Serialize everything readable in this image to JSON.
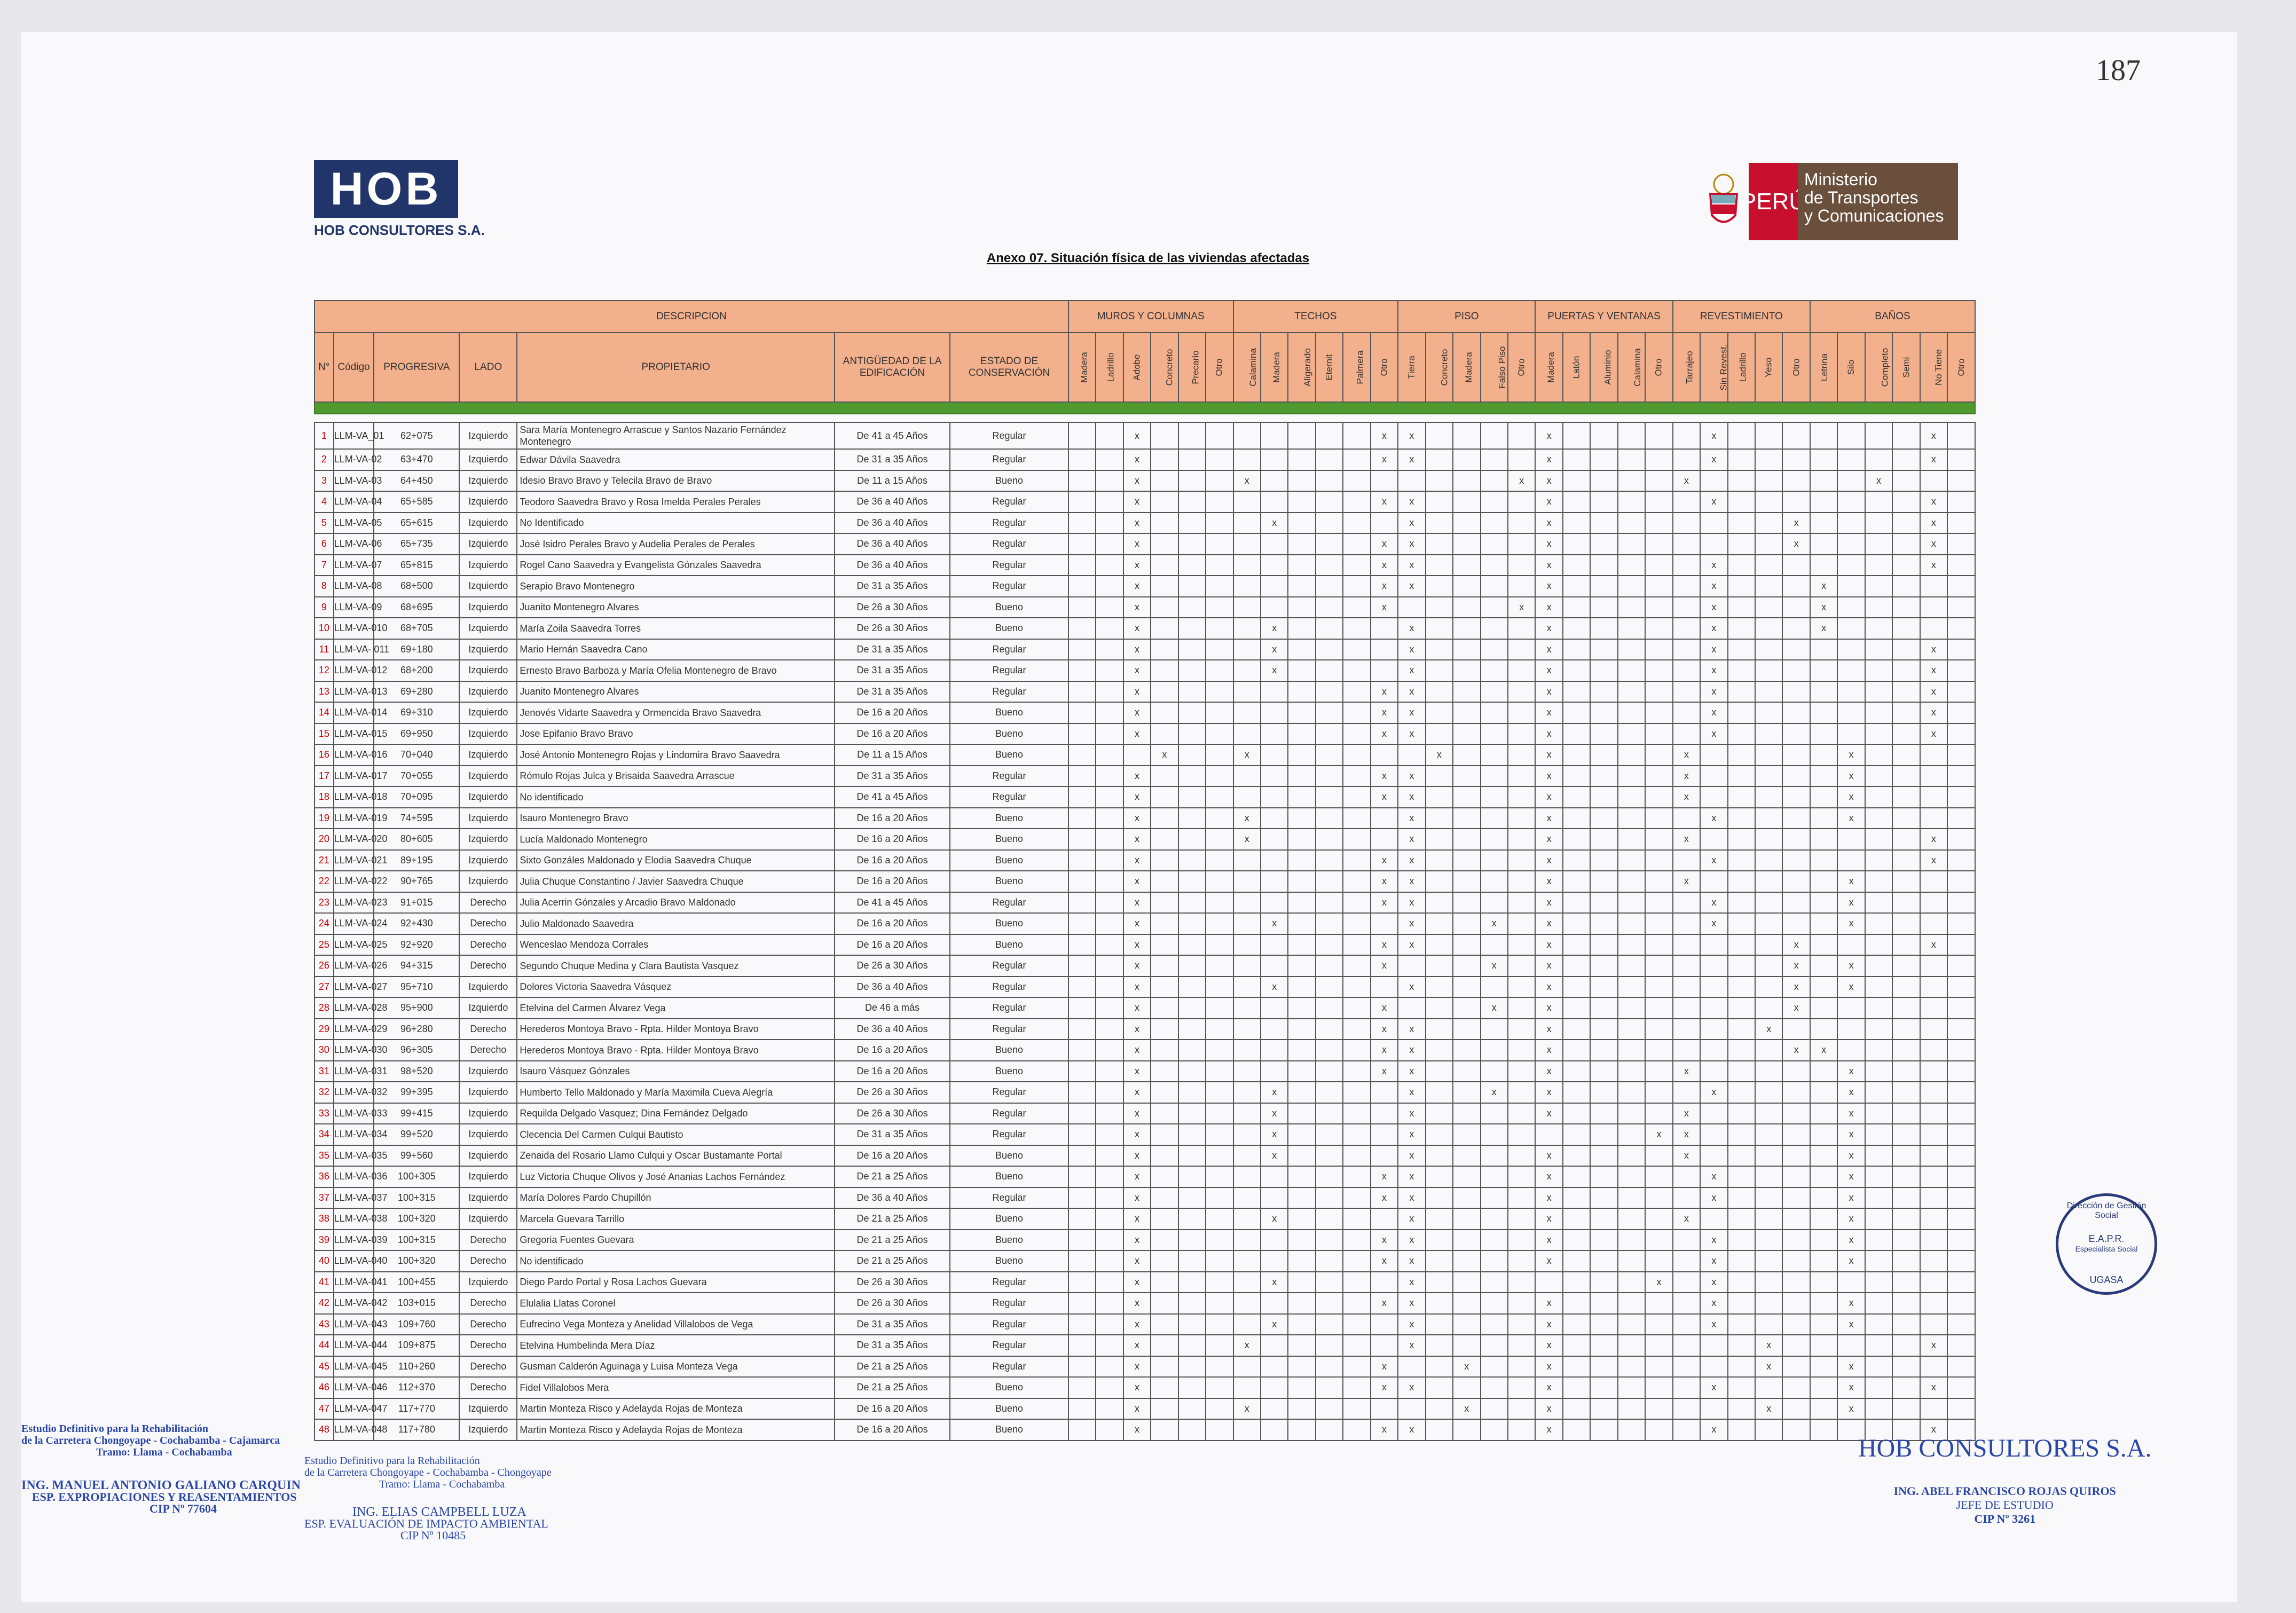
{
  "page_number": "187",
  "company": {
    "logo_text": "HOB",
    "name": "HOB CONSULTORES S.A."
  },
  "ministry": {
    "peru": "PERÚ",
    "line1": "Ministerio",
    "line2": "de Transportes",
    "line3": "y Comunicaciones"
  },
  "title": "Anexo 07. Situación física de las viviendas afectadas",
  "groups": {
    "descripcion": "DESCRIPCION",
    "muros": "MUROS Y COLUMNAS",
    "techos": "TECHOS",
    "piso": "PISO",
    "puertas": "PUERTAS Y VENTANAS",
    "revestimiento": "REVESTIMIENTO",
    "banos": "BAÑOS"
  },
  "headers": {
    "n": "N°",
    "codigo": "Código",
    "progresiva": "PROGRESIVA",
    "lado": "LADO",
    "propietario": "PROPIETARIO",
    "antiguedad": "ANTIGÜEDAD DE LA EDIFICACIÓN",
    "estado": "ESTADO DE CONSERVACIÓN"
  },
  "subheaders": [
    "Madera",
    "Ladrillo",
    "Adobe",
    "Concreto",
    "Precario",
    "Otro",
    "Calamina",
    "Madera",
    "Aligerado",
    "Eternit",
    "Palmera",
    "Otro",
    "Tierra",
    "Concreto",
    "Madera",
    "Falso Piso",
    "Otro",
    "Madera",
    "Latón",
    "Aluminio",
    "Calamina",
    "Otro",
    "Tarrajeo",
    "Sin Revest.",
    "Ladrillo",
    "Yeso",
    "Otro",
    "Letrina",
    "Silo",
    "Completo",
    "Semi",
    "No Tiene",
    "Otro"
  ],
  "rows": [
    {
      "n": "1",
      "codigo": "LLM-VA_01",
      "progresiva": "62+075",
      "lado": "Izquierdo",
      "propietario": "Sara María Montenegro Arrascue y Santos Nazario Fernández Montenegro",
      "antiguedad": "De 41 a 45 Años",
      "estado": "Regular",
      "x": [
        2,
        11,
        12,
        17,
        23,
        31
      ]
    },
    {
      "n": "2",
      "codigo": "LLM-VA-02",
      "progresiva": "63+470",
      "lado": "Izquierdo",
      "propietario": "Edwar Dávila Saavedra",
      "antiguedad": "De 31 a 35 Años",
      "estado": "Regular",
      "x": [
        2,
        11,
        12,
        17,
        23,
        31
      ]
    },
    {
      "n": "3",
      "codigo": "LLM-VA-03",
      "progresiva": "64+450",
      "lado": "Izquierdo",
      "propietario": "Idesio Bravo Bravo y Telecila Bravo de Bravo",
      "antiguedad": "De 11 a 15 Años",
      "estado": "Bueno",
      "x": [
        2,
        6,
        16,
        17,
        22,
        29
      ]
    },
    {
      "n": "4",
      "codigo": "LLM-VA-04",
      "progresiva": "65+585",
      "lado": "Izquierdo",
      "propietario": "Teodoro Saavedra Bravo y Rosa Imelda Perales Perales",
      "antiguedad": "De 36 a 40 Años",
      "estado": "Regular",
      "x": [
        2,
        11,
        12,
        17,
        23,
        31
      ]
    },
    {
      "n": "5",
      "codigo": "LLM-VA-05",
      "progresiva": "65+615",
      "lado": "Izquierdo",
      "propietario": "No Identificado",
      "antiguedad": "De 36 a 40 Años",
      "estado": "Regular",
      "x": [
        2,
        7,
        12,
        17,
        26,
        31
      ]
    },
    {
      "n": "6",
      "codigo": "LLM-VA-06",
      "progresiva": "65+735",
      "lado": "Izquierdo",
      "propietario": "José Isidro  Perales Bravo y Audelia Perales de Perales",
      "antiguedad": "De 36 a 40 Años",
      "estado": "Regular",
      "x": [
        2,
        11,
        12,
        17,
        26,
        31
      ]
    },
    {
      "n": "7",
      "codigo": "LLM-VA-07",
      "progresiva": "65+815",
      "lado": "Izquierdo",
      "propietario": "Rogel Cano Saavedra y Evangelista Gónzales Saavedra",
      "antiguedad": "De 36 a 40 Años",
      "estado": "Regular",
      "x": [
        2,
        11,
        12,
        17,
        23,
        31
      ]
    },
    {
      "n": "8",
      "codigo": "LLM-VA-08",
      "progresiva": "68+500",
      "lado": "Izquierdo",
      "propietario": "Serapio Bravo Montenegro",
      "antiguedad": "De 31 a 35 Años",
      "estado": "Regular",
      "x": [
        2,
        11,
        12,
        17,
        23,
        27
      ]
    },
    {
      "n": "9",
      "codigo": "LLM-VA-09",
      "progresiva": "68+695",
      "lado": "Izquierdo",
      "propietario": "Juanito Montenegro Alvares",
      "antiguedad": "De 26 a 30 Años",
      "estado": "Bueno",
      "x": [
        2,
        11,
        16,
        17,
        23,
        27
      ]
    },
    {
      "n": "10",
      "codigo": "LLM-VA-010",
      "progresiva": "68+705",
      "lado": "Izquierdo",
      "propietario": "María Zoila Saavedra Torres",
      "antiguedad": "De 26 a 30 Años",
      "estado": "Bueno",
      "x": [
        2,
        7,
        12,
        17,
        23,
        27
      ]
    },
    {
      "n": "11",
      "codigo": "LLM-VA- 011",
      "progresiva": "69+180",
      "lado": "Izquierdo",
      "propietario": "Mario Hernán Saavedra Cano",
      "antiguedad": "De 31 a 35 Años",
      "estado": "Regular",
      "x": [
        2,
        7,
        12,
        17,
        23,
        31
      ]
    },
    {
      "n": "12",
      "codigo": "LLM-VA-012",
      "progresiva": "68+200",
      "lado": "Izquierdo",
      "propietario": "Ernesto Bravo Barboza y María Ofelia Montenegro de Bravo",
      "antiguedad": "De 31 a 35 Años",
      "estado": "Regular",
      "x": [
        2,
        7,
        12,
        17,
        23,
        31
      ]
    },
    {
      "n": "13",
      "codigo": "LLM-VA-013",
      "progresiva": "69+280",
      "lado": "Izquierdo",
      "propietario": "Juanito Montenegro Alvares",
      "antiguedad": "De 31 a 35 Años",
      "estado": "Regular",
      "x": [
        2,
        11,
        12,
        17,
        23,
        31
      ]
    },
    {
      "n": "14",
      "codigo": "LLM-VA-014",
      "progresiva": "69+310",
      "lado": "Izquierdo",
      "propietario": "Jenovés  Vidarte Saavedra y Ormencida Bravo Saavedra",
      "antiguedad": "De 16 a 20 Años",
      "estado": "Bueno",
      "x": [
        2,
        11,
        12,
        17,
        23,
        31
      ]
    },
    {
      "n": "15",
      "codigo": "LLM-VA-015",
      "progresiva": "69+950",
      "lado": "Izquierdo",
      "propietario": "Jose Epifanio Bravo Bravo",
      "antiguedad": "De 16 a 20 Años",
      "estado": "Bueno",
      "x": [
        2,
        11,
        12,
        17,
        23,
        31
      ]
    },
    {
      "n": "16",
      "codigo": "LLM-VA-016",
      "progresiva": "70+040",
      "lado": "Izquierdo",
      "propietario": "José Antonio Montenegro Rojas y Lindomira Bravo Saavedra",
      "antiguedad": "De 11 a 15 Años",
      "estado": "Bueno",
      "x": [
        3,
        6,
        13,
        17,
        22,
        28
      ]
    },
    {
      "n": "17",
      "codigo": "LLM-VA-017",
      "progresiva": "70+055",
      "lado": "Izquierdo",
      "propietario": "Rómulo Rojas Julca y Brisaida Saavedra Arrascue",
      "antiguedad": "De 31 a 35 Años",
      "estado": "Regular",
      "x": [
        2,
        11,
        12,
        17,
        22,
        28
      ]
    },
    {
      "n": "18",
      "codigo": "LLM-VA-018",
      "progresiva": "70+095",
      "lado": "Izquierdo",
      "propietario": "No identificado",
      "antiguedad": "De 41 a 45 Años",
      "estado": "Regular",
      "x": [
        2,
        11,
        12,
        17,
        22,
        28
      ]
    },
    {
      "n": "19",
      "codigo": "LLM-VA-019",
      "progresiva": "74+595",
      "lado": "Izquierdo",
      "propietario": "Isauro Montenegro Bravo",
      "antiguedad": "De 16 a 20 Años",
      "estado": "Bueno",
      "x": [
        2,
        6,
        12,
        17,
        23,
        28
      ]
    },
    {
      "n": "20",
      "codigo": "LLM-VA-020",
      "progresiva": "80+605",
      "lado": "Izquierdo",
      "propietario": "Lucía Maldonado Montenegro",
      "antiguedad": "De 16 a 20 Años",
      "estado": "Bueno",
      "x": [
        2,
        6,
        12,
        17,
        22,
        31
      ]
    },
    {
      "n": "21",
      "codigo": "LLM-VA-021",
      "progresiva": "89+195",
      "lado": "Izquierdo",
      "propietario": "Sixto Gonzáles Maldonado y Elodia Saavedra Chuque",
      "antiguedad": "De 16 a 20 Años",
      "estado": "Bueno",
      "x": [
        2,
        11,
        12,
        17,
        23,
        31
      ]
    },
    {
      "n": "22",
      "codigo": "LLM-VA-022",
      "progresiva": "90+765",
      "lado": "Izquierdo",
      "propietario": "Julia Chuque Constantino  / Javier Saavedra Chuque",
      "antiguedad": "De 16 a 20 Años",
      "estado": "Bueno",
      "x": [
        2,
        11,
        12,
        17,
        22,
        28
      ]
    },
    {
      "n": "23",
      "codigo": "LLM-VA-023",
      "progresiva": "91+015",
      "lado": "Derecho",
      "propietario": "Julia Acerrin Gónzales y Arcadio Bravo Maldonado",
      "antiguedad": "De 41 a 45 Años",
      "estado": "Regular",
      "x": [
        2,
        11,
        12,
        17,
        23,
        28
      ]
    },
    {
      "n": "24",
      "codigo": "LLM-VA-024",
      "progresiva": "92+430",
      "lado": "Derecho",
      "propietario": "Julio Maldonado Saavedra",
      "antiguedad": "De 16 a 20 Años",
      "estado": "Bueno",
      "x": [
        2,
        7,
        12,
        15,
        17,
        23,
        28
      ]
    },
    {
      "n": "25",
      "codigo": "LLM-VA-025",
      "progresiva": "92+920",
      "lado": "Derecho",
      "propietario": "Wenceslao Mendoza Corrales",
      "antiguedad": "De 16 a 20 Años",
      "estado": "Bueno",
      "x": [
        2,
        11,
        12,
        17,
        26,
        31
      ]
    },
    {
      "n": "26",
      "codigo": "LLM-VA-026",
      "progresiva": "94+315",
      "lado": "Derecho",
      "propietario": "Segundo Chuque Medina  y Clara Bautista Vasquez",
      "antiguedad": "De 26 a 30 Años",
      "estado": "Regular",
      "x": [
        2,
        11,
        15,
        17,
        26,
        28
      ]
    },
    {
      "n": "27",
      "codigo": "LLM-VA-027",
      "progresiva": "95+710",
      "lado": "Izquierdo",
      "propietario": "Dolores Victoria Saavedra Vásquez",
      "antiguedad": "De 36 a 40 Años",
      "estado": "Regular",
      "x": [
        2,
        7,
        12,
        17,
        26,
        28
      ]
    },
    {
      "n": "28",
      "codigo": "LLM-VA-028",
      "progresiva": "95+900",
      "lado": "Izquierdo",
      "propietario": "Etelvina del Carmen Álvarez Vega",
      "antiguedad": "De 46 a más",
      "estado": "Regular",
      "x": [
        2,
        11,
        15,
        17,
        26
      ]
    },
    {
      "n": "29",
      "codigo": "LLM-VA-029",
      "progresiva": "96+280",
      "lado": "Derecho",
      "propietario": "Herederos Montoya Bravo - Rpta. Hilder Montoya Bravo",
      "antiguedad": "De 36 a 40 Años",
      "estado": "Regular",
      "x": [
        2,
        11,
        12,
        17,
        25
      ]
    },
    {
      "n": "30",
      "codigo": "LLM-VA-030",
      "progresiva": "96+305",
      "lado": "Derecho",
      "propietario": "Herederos Montoya Bravo - Rpta. Hilder Montoya Bravo",
      "antiguedad": "De 16 a 20 Años",
      "estado": "Bueno",
      "x": [
        2,
        11,
        12,
        17,
        26,
        27
      ]
    },
    {
      "n": "31",
      "codigo": "LLM-VA-031",
      "progresiva": "98+520",
      "lado": "Izquierdo",
      "propietario": "Isauro Vásquez Gónzales",
      "antiguedad": "De 16 a 20 Años",
      "estado": "Bueno",
      "x": [
        2,
        11,
        12,
        17,
        22,
        28
      ]
    },
    {
      "n": "32",
      "codigo": "LLM-VA-032",
      "progresiva": "99+395",
      "lado": "Izquierdo",
      "propietario": "Humberto Tello Maldonado y María Maximila Cueva Alegría",
      "antiguedad": "De 26 a 30 Años",
      "estado": "Regular",
      "x": [
        2,
        7,
        12,
        15,
        17,
        23,
        28
      ]
    },
    {
      "n": "33",
      "codigo": "LLM-VA-033",
      "progresiva": "99+415",
      "lado": "Izquierdo",
      "propietario": "Requilda Delgado Vasquez; Dina Fernández Delgado",
      "antiguedad": "De 26 a 30 Años",
      "estado": "Regular",
      "x": [
        2,
        7,
        12,
        17,
        22,
        28
      ]
    },
    {
      "n": "34",
      "codigo": "LLM-VA-034",
      "progresiva": "99+520",
      "lado": "Izquierdo",
      "propietario": "Clecencia Del Carmen Culqui Bautisto",
      "antiguedad": "De 31 a 35 Años",
      "estado": "Regular",
      "x": [
        2,
        7,
        12,
        21,
        22,
        28
      ]
    },
    {
      "n": "35",
      "codigo": "LLM-VA-035",
      "progresiva": "99+560",
      "lado": "Izquierdo",
      "propietario": "Zenaida del Rosario  Llamo Culqui y Oscar Bustamante Portal",
      "antiguedad": "De 16 a 20 Años",
      "estado": "Bueno",
      "x": [
        2,
        7,
        12,
        17,
        22,
        28
      ]
    },
    {
      "n": "36",
      "codigo": "LLM-VA-036",
      "progresiva": "100+305",
      "lado": "Izquierdo",
      "propietario": "Luz Victoria Chuque Olivos y José Ananias Lachos Fernández",
      "antiguedad": "De 21 a 25 Años",
      "estado": "Bueno",
      "x": [
        2,
        11,
        12,
        17,
        23,
        28
      ]
    },
    {
      "n": "37",
      "codigo": "LLM-VA-037",
      "progresiva": "100+315",
      "lado": "Izquierdo",
      "propietario": "María Dolores Pardo Chupillón",
      "antiguedad": "De 36 a 40 Años",
      "estado": "Regular",
      "x": [
        2,
        11,
        12,
        17,
        23,
        28
      ]
    },
    {
      "n": "38",
      "codigo": "LLM-VA-038",
      "progresiva": "100+320",
      "lado": "Izquierdo",
      "propietario": "Marcela Guevara Tarrillo",
      "antiguedad": "De 21 a 25 Años",
      "estado": "Bueno",
      "x": [
        2,
        7,
        12,
        17,
        22,
        28
      ]
    },
    {
      "n": "39",
      "codigo": "LLM-VA-039",
      "progresiva": "100+315",
      "lado": "Derecho",
      "propietario": "Gregoria Fuentes Guevara",
      "antiguedad": "De 21 a 25 Años",
      "estado": "Bueno",
      "x": [
        2,
        11,
        12,
        17,
        23,
        28
      ]
    },
    {
      "n": "40",
      "codigo": "LLM-VA-040",
      "progresiva": "100+320",
      "lado": "Derecho",
      "propietario": "No identificado",
      "antiguedad": "De 21 a 25 Años",
      "estado": "Bueno",
      "x": [
        2,
        11,
        12,
        17,
        23,
        28
      ]
    },
    {
      "n": "41",
      "codigo": "LLM-VA-041",
      "progresiva": "100+455",
      "lado": "Izquierdo",
      "propietario": "Diego Pardo Portal y Rosa Lachos Guevara",
      "antiguedad": "De 26 a 30 Años",
      "estado": "Regular",
      "x": [
        2,
        7,
        12,
        21,
        23
      ]
    },
    {
      "n": "42",
      "codigo": "LLM-VA-042",
      "progresiva": "103+015",
      "lado": "Derecho",
      "propietario": "Elulalia Llatas Coronel",
      "antiguedad": "De 26 a 30 Años",
      "estado": "Regular",
      "x": [
        2,
        11,
        12,
        17,
        23,
        28
      ]
    },
    {
      "n": "43",
      "codigo": "LLM-VA-043",
      "progresiva": "109+760",
      "lado": "Derecho",
      "propietario": "Eufrecino Vega Monteza y Anelidad Villalobos de Vega",
      "antiguedad": "De 31 a 35 Años",
      "estado": "Regular",
      "x": [
        2,
        7,
        12,
        17,
        23,
        28
      ]
    },
    {
      "n": "44",
      "codigo": "LLM-VA-044",
      "progresiva": "109+875",
      "lado": "Derecho",
      "propietario": "Etelvina Humbelinda Mera Díaz",
      "antiguedad": "De 31 a 35 Años",
      "estado": "Regular",
      "x": [
        2,
        6,
        12,
        17,
        25,
        31
      ]
    },
    {
      "n": "45",
      "codigo": "LLM-VA-045",
      "progresiva": "110+260",
      "lado": "Derecho",
      "propietario": "Gusman Calderón Aguinaga y Luisa Monteza Vega",
      "antiguedad": "De 21 a 25 Años",
      "estado": "Regular",
      "x": [
        2,
        11,
        14,
        17,
        25,
        28
      ]
    },
    {
      "n": "46",
      "codigo": "LLM-VA-046",
      "progresiva": "112+370",
      "lado": "Derecho",
      "propietario": "Fidel Villalobos Mera",
      "antiguedad": "De 21 a 25 Años",
      "estado": "Bueno",
      "x": [
        2,
        11,
        12,
        17,
        23,
        28,
        31
      ]
    },
    {
      "n": "47",
      "codigo": "LLM-VA-047",
      "progresiva": "117+770",
      "lado": "Izquierdo",
      "propietario": "Martin Monteza Risco y Adelayda Rojas de Monteza",
      "antiguedad": "De 16 a 20 Años",
      "estado": "Bueno",
      "x": [
        2,
        6,
        14,
        17,
        25,
        28
      ]
    },
    {
      "n": "48",
      "codigo": "LLM-VA-048",
      "progresiva": "117+780",
      "lado": "Izquierdo",
      "propietario": "Martin Monteza Risco y Adelayda Rojas de Monteza",
      "antiguedad": "De 16 a 20 Años",
      "estado": "Bueno",
      "x": [
        2,
        11,
        12,
        17,
        23,
        31
      ]
    }
  ],
  "mark": "x",
  "signatures": {
    "left1": [
      "Estudio Definitivo para la Rehabilitación",
      "de la Carretera Chongoyape - Cochabamba - Cajamarca",
      "Tramo: Llama - Cochabamba"
    ],
    "left1_name": "ING. MANUEL ANTONIO GALIANO CARQUIN",
    "left1_role": "ESP. EXPROPIACIONES Y REASENTAMIENTOS",
    "left1_cip": "CIP Nº 77604",
    "left2": [
      "Estudio Definitivo para la Rehabilitación",
      "de la Carretera Chongoyape - Cochabamba - Chongoyape",
      "Tramo: Llama - Cochabamba"
    ],
    "left2_name": "ING. ELIAS CAMPBELL LUZA",
    "left2_role": "ESP. EVALUACIÓN DE IMPACTO AMBIENTAL",
    "left2_cip": "CIP Nº 10485",
    "right_company": "HOB CONSULTORES S.A.",
    "right_name": "ING. ABEL FRANCISCO ROJAS QUIROS",
    "right_role": "JEFE DE ESTUDIO",
    "right_cip": "CIP Nº 3261",
    "stamp": [
      "Dirección de Gestión Social",
      "E.A.P.R.",
      "Especialista Social",
      "UGASA"
    ]
  }
}
